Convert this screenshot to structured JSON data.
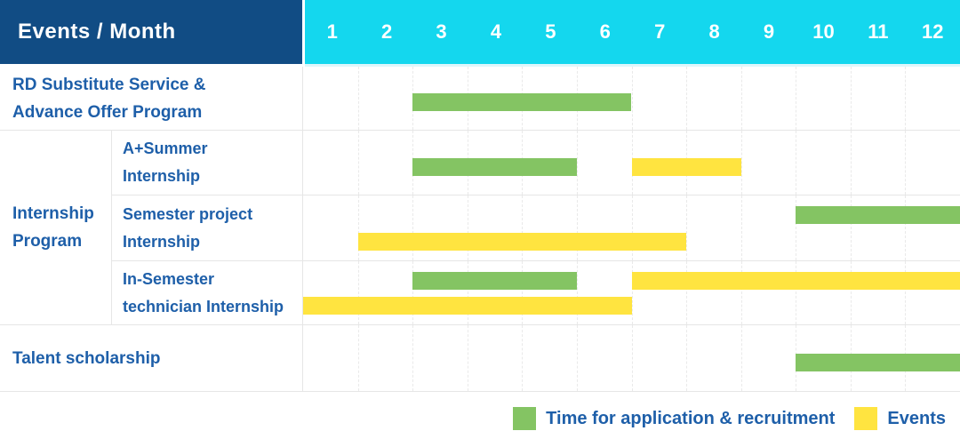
{
  "header": {
    "title": "Events / Month",
    "months": [
      "1",
      "2",
      "3",
      "4",
      "5",
      "6",
      "7",
      "8",
      "9",
      "10",
      "11",
      "12"
    ]
  },
  "colors": {
    "header_bg": "#114C84",
    "months_bg": "#14D7EE",
    "label_text": "#1E5FA9",
    "green": "#84C463",
    "yellow": "#FFE440",
    "grid": "#E6E6E6"
  },
  "chart_data": {
    "type": "bar",
    "subtype": "gantt-schedule",
    "title": "Events / Month",
    "x_categories": [
      1,
      2,
      3,
      4,
      5,
      6,
      7,
      8,
      9,
      10,
      11,
      12
    ],
    "x_range": [
      1,
      12
    ],
    "legend_position": "bottom-right",
    "series_legend": [
      {
        "key": "application",
        "label": "Time for application & recruitment",
        "color": "#84C463"
      },
      {
        "key": "events",
        "label": "Events",
        "color": "#FFE440"
      }
    ],
    "groups": [
      {
        "id": "internship-program",
        "label_lines": [
          "Internship",
          "Program"
        ]
      }
    ],
    "rows": [
      {
        "id": "rd-substitute-service",
        "label_lines": [
          "RD Substitute Service &",
          "Advance Offer Program"
        ],
        "group": null,
        "bars": [
          {
            "type": "application",
            "start_month": 3,
            "end_month": 6,
            "lane": "single"
          }
        ]
      },
      {
        "id": "a-plus-summer-internship",
        "label_lines": [
          "A+Summer",
          "Internship"
        ],
        "group": "internship-program",
        "bars": [
          {
            "type": "application",
            "start_month": 3,
            "end_month": 5,
            "lane": "single"
          },
          {
            "type": "events",
            "start_month": 7,
            "end_month": 8,
            "lane": "single"
          }
        ]
      },
      {
        "id": "semester-project-internship",
        "label_lines": [
          "Semester project",
          "Internship"
        ],
        "group": "internship-program",
        "bars": [
          {
            "type": "application",
            "start_month": 10,
            "end_month": 12,
            "lane": "top"
          },
          {
            "type": "events",
            "start_month": 2,
            "end_month": 7,
            "lane": "bottom"
          }
        ]
      },
      {
        "id": "in-semester-technician-internship",
        "label_lines": [
          "In-Semester",
          "technician Internship"
        ],
        "group": "internship-program",
        "bars": [
          {
            "type": "application",
            "start_month": 3,
            "end_month": 5,
            "lane": "top"
          },
          {
            "type": "events",
            "start_month": 7,
            "end_month": 12,
            "lane": "top"
          },
          {
            "type": "events",
            "start_month": 1,
            "end_month": 6,
            "lane": "bottom"
          }
        ]
      },
      {
        "id": "talent-scholarship",
        "label_lines": [
          "Talent scholarship"
        ],
        "group": null,
        "bars": [
          {
            "type": "application",
            "start_month": 10,
            "end_month": 12,
            "lane": "single"
          }
        ]
      }
    ]
  }
}
